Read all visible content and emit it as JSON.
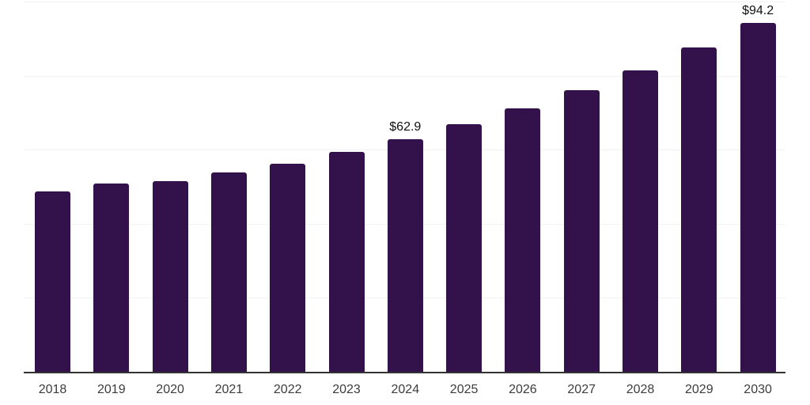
{
  "chart_data": {
    "type": "bar",
    "title": "",
    "xlabel": "",
    "ylabel": "",
    "categories": [
      "2018",
      "2019",
      "2020",
      "2021",
      "2022",
      "2023",
      "2024",
      "2025",
      "2026",
      "2027",
      "2028",
      "2029",
      "2030"
    ],
    "values": [
      48.7,
      50.9,
      51.5,
      53.8,
      56.1,
      59.3,
      62.9,
      66.8,
      71.2,
      76.1,
      81.4,
      87.6,
      94.2
    ],
    "annotations": [
      {
        "year": "2024",
        "label": "$62.9"
      },
      {
        "year": "2030",
        "label": "$94.2"
      }
    ],
    "ylim": [
      0,
      100
    ],
    "gridline_values": [
      20,
      40,
      60,
      80,
      100
    ],
    "grid": true,
    "legend": "none",
    "y_tick_labels_visible": false,
    "colors": {
      "bar": "#33124B",
      "gridline": "#F2F2F2",
      "axis_line": "#333333",
      "tick_label": "#3C3C3C",
      "annotation": "#111111",
      "background": "#FFFFFF"
    }
  }
}
